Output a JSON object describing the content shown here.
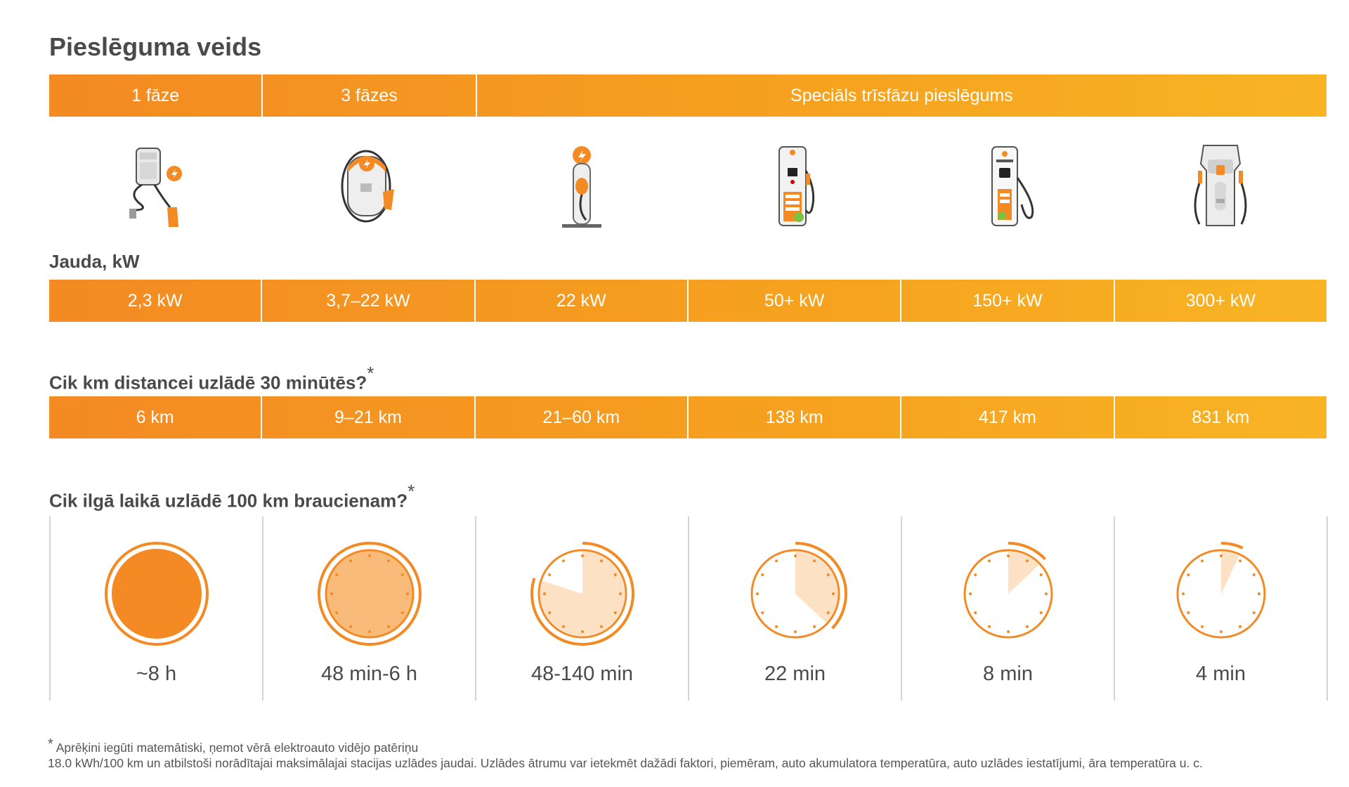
{
  "title": "Pieslēguma veids",
  "connection_types": [
    "1 fāze",
    "3 fāzes",
    "Speciāls trīsfāzu pieslēgums"
  ],
  "icons": [
    {
      "name": "portable-charger-icon"
    },
    {
      "name": "wallbox-charger-icon"
    },
    {
      "name": "post-charger-icon"
    },
    {
      "name": "dc-charger-50-icon"
    },
    {
      "name": "dc-charger-150-icon"
    },
    {
      "name": "hpc-charger-300-icon"
    }
  ],
  "speed": {
    "heading": "Jauda, kW",
    "values": [
      "2,3 kW",
      "3,7–22 kW",
      "22 kW",
      "50+ kW",
      "150+ kW",
      "300+ kW"
    ]
  },
  "distance": {
    "heading": "Cik km distancei uzlādē 30 minūtēs?",
    "asterisk": "*",
    "values": [
      "6 km",
      "9–21 km",
      "21–60 km",
      "138 km",
      "417 km",
      "831 km"
    ]
  },
  "time": {
    "heading": "Cik ilgā laikā uzlādē 100 km braucienam?",
    "asterisk": "*",
    "values": [
      "~8 h",
      "48 min-6 h",
      "48-140 min",
      "22 min",
      "8 min",
      "4 min"
    ],
    "fill_fraction": [
      1.0,
      1.0,
      0.8,
      0.37,
      0.13,
      0.07
    ]
  },
  "footnote": {
    "asterisk": "*",
    "line1": "Aprēķini iegūti matemātiski, ņemot vērā elektroauto vidējo patēriņu",
    "line2": "18.0 kWh/100 km un atbilstoši norādītajai maksimālajai stacijas uzlādes jaudai. Uzlādes ātrumu var ietekmēt dažādi faktori, piemēram, auto akumulatora temperatūra, auto uzlādes iestatījumi, āra temperatūra u. c."
  },
  "colors": {
    "orange": "#f38a23",
    "orange_light": "#f8b424",
    "fill_light": "#fde1c4",
    "fill_mid": "#f8bb7a"
  }
}
